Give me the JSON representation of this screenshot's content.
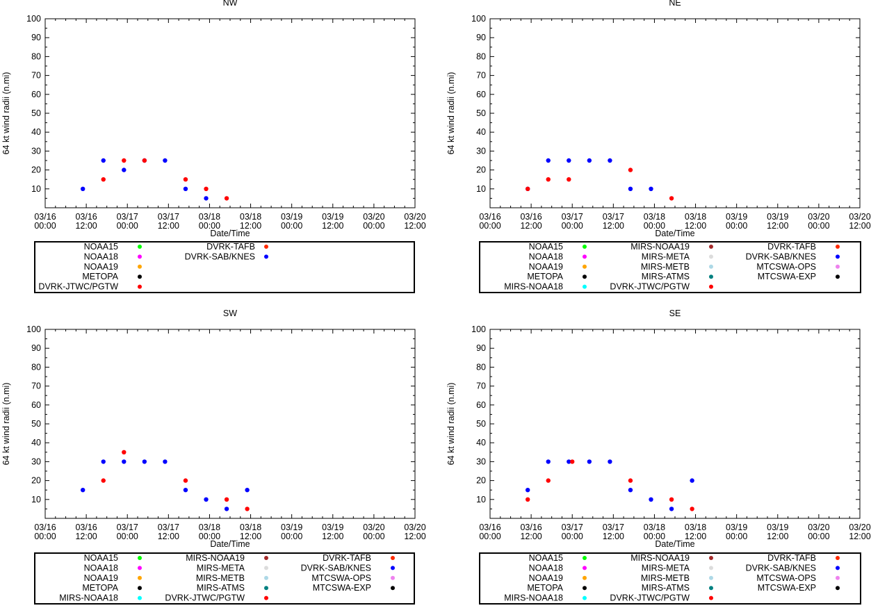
{
  "colors": {
    "NOAA15": "#00ff00",
    "NOAA18": "#ff00ff",
    "NOAA19": "#ffa500",
    "METOPA": "#000000",
    "MIRS-NOAA18": "#00ffff",
    "MIRS-NOAA19": "#a52a2a",
    "MIRS-META": "#dcdcdc",
    "MIRS-METB": "#add8e6",
    "MIRS-ATMS": "#008080",
    "DVRK-JTWC/PGTW": "#ff0000",
    "DVRK-TAFB": "#ff2a00",
    "DVRK-SAB/KNES": "#0000ff",
    "MTCSWA-OPS": "#ee82ee",
    "MTCSWA-EXP": "#000000"
  },
  "chart_data": [
    {
      "type": "scatter",
      "title": "NW",
      "xlabel": "Date/Time",
      "ylabel": "64 kt wind radii (n.mi)",
      "ylim": [
        0,
        100
      ],
      "y_ticks": [
        "100",
        "90",
        "80",
        "70",
        "60",
        "50",
        "40",
        "30",
        "20",
        "10"
      ],
      "x_ticks": [
        [
          "03/16",
          "00:00"
        ],
        [
          "03/16",
          "12:00"
        ],
        [
          "03/17",
          "00:00"
        ],
        [
          "03/17",
          "12:00"
        ],
        [
          "03/18",
          "00:00"
        ],
        [
          "03/18",
          "12:00"
        ],
        [
          "03/19",
          "00:00"
        ],
        [
          "03/19",
          "12:00"
        ],
        [
          "03/20",
          "00:00"
        ],
        [
          "03/20",
          "12:00"
        ]
      ],
      "xlim_hours": [
        0,
        108
      ],
      "legend": [
        [
          "NOAA15",
          "NOAA18",
          "NOAA19",
          "METOPA",
          "DVRK-JTWC/PGTW"
        ],
        [
          "DVRK-TAFB",
          "DVRK-SAB/KNES"
        ]
      ],
      "series": [
        {
          "name": "DVRK-SAB/KNES",
          "x": [
            11,
            17,
            23,
            29,
            35,
            41,
            47
          ],
          "y": [
            10,
            25,
            20,
            25,
            25,
            10,
            5
          ]
        },
        {
          "name": "DVRK-JTWC/PGTW",
          "x": [
            17,
            23,
            29,
            41,
            47,
            53
          ],
          "y": [
            15,
            25,
            25,
            15,
            10,
            5
          ]
        }
      ]
    },
    {
      "type": "scatter",
      "title": "NE",
      "xlabel": "Date/Time",
      "ylabel": "64 kt wind radii (n.mi)",
      "ylim": [
        0,
        100
      ],
      "y_ticks": [
        "100",
        "90",
        "80",
        "70",
        "60",
        "50",
        "40",
        "30",
        "20",
        "10"
      ],
      "x_ticks": [
        [
          "03/16",
          "00:00"
        ],
        [
          "03/16",
          "12:00"
        ],
        [
          "03/17",
          "00:00"
        ],
        [
          "03/17",
          "12:00"
        ],
        [
          "03/18",
          "00:00"
        ],
        [
          "03/18",
          "12:00"
        ],
        [
          "03/19",
          "00:00"
        ],
        [
          "03/19",
          "12:00"
        ],
        [
          "03/20",
          "00:00"
        ],
        [
          "03/20",
          "12:00"
        ]
      ],
      "xlim_hours": [
        0,
        108
      ],
      "legend": [
        [
          "NOAA15",
          "NOAA18",
          "NOAA19",
          "METOPA",
          "MIRS-NOAA18"
        ],
        [
          "MIRS-NOAA19",
          "MIRS-META",
          "MIRS-METB",
          "MIRS-ATMS",
          "DVRK-JTWC/PGTW"
        ],
        [
          "DVRK-TAFB",
          "DVRK-SAB/KNES",
          "MTCSWA-OPS",
          "MTCSWA-EXP"
        ]
      ],
      "series": [
        {
          "name": "DVRK-SAB/KNES",
          "x": [
            11,
            17,
            23,
            29,
            35,
            41,
            47
          ],
          "y": [
            10,
            25,
            25,
            25,
            25,
            10,
            10
          ]
        },
        {
          "name": "DVRK-JTWC/PGTW",
          "x": [
            11,
            17,
            23,
            41,
            53
          ],
          "y": [
            10,
            15,
            15,
            20,
            5
          ]
        }
      ]
    },
    {
      "type": "scatter",
      "title": "SW",
      "xlabel": "Date/Time",
      "ylabel": "64 kt wind radii (n.mi)",
      "ylim": [
        0,
        100
      ],
      "y_ticks": [
        "100",
        "90",
        "80",
        "70",
        "60",
        "50",
        "40",
        "30",
        "20",
        "10"
      ],
      "x_ticks": [
        [
          "03/16",
          "00:00"
        ],
        [
          "03/16",
          "12:00"
        ],
        [
          "03/17",
          "00:00"
        ],
        [
          "03/17",
          "12:00"
        ],
        [
          "03/18",
          "00:00"
        ],
        [
          "03/18",
          "12:00"
        ],
        [
          "03/19",
          "00:00"
        ],
        [
          "03/19",
          "12:00"
        ],
        [
          "03/20",
          "00:00"
        ],
        [
          "03/20",
          "12:00"
        ]
      ],
      "xlim_hours": [
        0,
        108
      ],
      "legend": [
        [
          "NOAA15",
          "NOAA18",
          "NOAA19",
          "METOPA",
          "MIRS-NOAA18"
        ],
        [
          "MIRS-NOAA19",
          "MIRS-META",
          "MIRS-METB",
          "MIRS-ATMS",
          "DVRK-JTWC/PGTW"
        ],
        [
          "DVRK-TAFB",
          "DVRK-SAB/KNES",
          "MTCSWA-OPS",
          "MTCSWA-EXP"
        ]
      ],
      "series": [
        {
          "name": "DVRK-SAB/KNES",
          "x": [
            11,
            17,
            23,
            29,
            35,
            41,
            47,
            53,
            59
          ],
          "y": [
            15,
            30,
            30,
            30,
            30,
            15,
            10,
            5,
            15
          ]
        },
        {
          "name": "DVRK-JTWC/PGTW",
          "x": [
            17,
            23,
            41,
            53,
            59
          ],
          "y": [
            20,
            35,
            20,
            10,
            5
          ]
        }
      ]
    },
    {
      "type": "scatter",
      "title": "SE",
      "xlabel": "Date/Time",
      "ylabel": "64 kt wind radii (n.mi)",
      "ylim": [
        0,
        100
      ],
      "y_ticks": [
        "100",
        "90",
        "80",
        "70",
        "60",
        "50",
        "40",
        "30",
        "20",
        "10"
      ],
      "x_ticks": [
        [
          "03/16",
          "00:00"
        ],
        [
          "03/16",
          "12:00"
        ],
        [
          "03/17",
          "00:00"
        ],
        [
          "03/17",
          "12:00"
        ],
        [
          "03/18",
          "00:00"
        ],
        [
          "03/18",
          "12:00"
        ],
        [
          "03/19",
          "00:00"
        ],
        [
          "03/19",
          "12:00"
        ],
        [
          "03/20",
          "00:00"
        ],
        [
          "03/20",
          "12:00"
        ]
      ],
      "xlim_hours": [
        0,
        108
      ],
      "legend": [
        [
          "NOAA15",
          "NOAA18",
          "NOAA19",
          "METOPA",
          "MIRS-NOAA18"
        ],
        [
          "MIRS-NOAA19",
          "MIRS-META",
          "MIRS-METB",
          "MIRS-ATMS",
          "DVRK-JTWC/PGTW"
        ],
        [
          "DVRK-TAFB",
          "DVRK-SAB/KNES",
          "MTCSWA-OPS",
          "MTCSWA-EXP"
        ]
      ],
      "series": [
        {
          "name": "DVRK-SAB/KNES",
          "x": [
            11,
            17,
            23,
            29,
            35,
            41,
            47,
            53,
            59
          ],
          "y": [
            15,
            30,
            30,
            30,
            30,
            15,
            10,
            5,
            20
          ]
        },
        {
          "name": "DVRK-JTWC/PGTW",
          "x": [
            11,
            17,
            24,
            41,
            53,
            59
          ],
          "y": [
            10,
            20,
            30,
            20,
            10,
            5
          ]
        }
      ]
    }
  ]
}
